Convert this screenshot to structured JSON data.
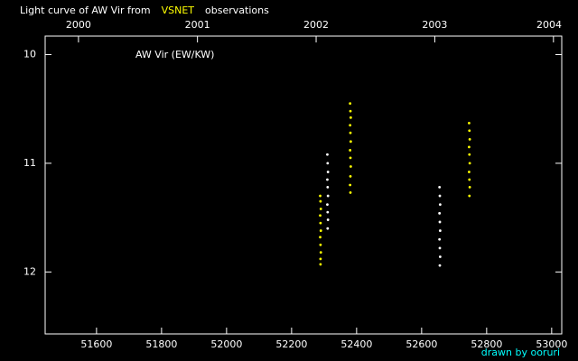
{
  "chart_data": {
    "type": "scatter",
    "title_parts": [
      {
        "text": "Light curve of AW Vir from",
        "color": "#ffffff"
      },
      {
        "text": "VSNET",
        "color": "#ffff00"
      },
      {
        "text": "observations",
        "color": "#ffffff"
      }
    ],
    "annotation": "AW Vir (EW/KW)",
    "credit": "drawn by ooruri",
    "credit_color": "#00ffff",
    "xlim": [
      51442,
      53031
    ],
    "ylim": [
      9.83,
      12.57
    ],
    "y_inverted": true,
    "xticks": [
      51600,
      51800,
      52000,
      52200,
      52400,
      52600,
      52800,
      53000
    ],
    "x2ticks": [
      {
        "value": 51544.5,
        "label": "2000"
      },
      {
        "value": 51910.5,
        "label": "2001"
      },
      {
        "value": 52275.5,
        "label": "2002"
      },
      {
        "value": 52640.5,
        "label": "2003"
      },
      {
        "value": 53005.5,
        "label": "2004"
      }
    ],
    "yticks": [
      10,
      11,
      12
    ],
    "series": [
      {
        "color": "#ffff00",
        "x": [
          52288,
          52289,
          52290,
          52288,
          52289,
          52290,
          52288,
          52289,
          52290,
          52289,
          52289,
          52380,
          52381,
          52382,
          52380,
          52381,
          52382,
          52380,
          52381,
          52382,
          52381,
          52380,
          52381,
          52746,
          52747,
          52748,
          52746,
          52747,
          52748,
          52746,
          52747,
          52748,
          52747
        ],
        "values": [
          11.3,
          11.35,
          11.42,
          11.48,
          11.55,
          11.62,
          11.68,
          11.75,
          11.82,
          11.88,
          11.93,
          10.45,
          10.52,
          10.58,
          10.65,
          10.72,
          10.8,
          10.88,
          10.95,
          11.03,
          11.12,
          11.2,
          11.27,
          10.63,
          10.7,
          10.78,
          10.85,
          10.92,
          11.0,
          11.08,
          11.15,
          11.22,
          11.3
        ]
      },
      {
        "color": "#ffffff",
        "x": [
          52310,
          52311,
          52312,
          52310,
          52311,
          52312,
          52310,
          52311,
          52312,
          52311,
          52655,
          52656,
          52657,
          52655,
          52656,
          52657,
          52655,
          52656,
          52657,
          52656
        ],
        "values": [
          10.92,
          11.0,
          11.08,
          11.15,
          11.22,
          11.3,
          11.38,
          11.45,
          11.52,
          11.6,
          11.22,
          11.3,
          11.38,
          11.46,
          11.54,
          11.62,
          11.7,
          11.78,
          11.86,
          11.94
        ]
      }
    ]
  }
}
